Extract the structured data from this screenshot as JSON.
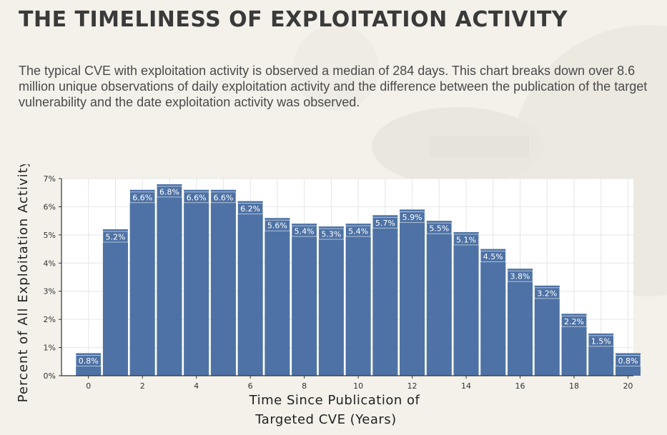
{
  "page": {
    "title": "THE TIMELINESS OF EXPLOITATION ACTIVITY",
    "description": "The typical CVE with exploitation activity is observed a median of 284 days. This chart breaks down over 8.6 million unique observations of daily exploitation activity and the difference between the publication of the target vulnerability and the date exploitation activity was observed."
  },
  "chart_data": {
    "type": "bar",
    "xlabel_lines": [
      "Time Since Publication of",
      "Targeted CVE (Years)"
    ],
    "ylabel": "Percent of All Exploitation Activity",
    "x": [
      0,
      1,
      2,
      3,
      4,
      5,
      6,
      7,
      8,
      9,
      10,
      11,
      12,
      13,
      14,
      15,
      16,
      17,
      18,
      19,
      20
    ],
    "values": [
      0.8,
      5.2,
      6.6,
      6.8,
      6.6,
      6.6,
      6.2,
      5.6,
      5.4,
      5.3,
      5.4,
      5.7,
      5.9,
      5.5,
      5.1,
      4.5,
      3.8,
      3.2,
      2.2,
      1.5,
      0.8
    ],
    "bar_labels": [
      "0.8%",
      "5.2%",
      "6.6%",
      "6.8%",
      "6.6%",
      "6.6%",
      "6.2%",
      "5.6%",
      "5.4%",
      "5.3%",
      "5.4%",
      "5.7%",
      "5.9%",
      "5.5%",
      "5.1%",
      "4.5%",
      "3.8%",
      "3.2%",
      "2.2%",
      "1.5%",
      "0.8%"
    ],
    "x_ticks": [
      0,
      2,
      4,
      6,
      8,
      10,
      12,
      14,
      16,
      18,
      20
    ],
    "y_ticks": [
      "0%",
      "1%",
      "2%",
      "3%",
      "4%",
      "5%",
      "6%",
      "7%"
    ],
    "ylim": [
      0,
      7
    ],
    "xlim": [
      -1,
      20.2
    ],
    "grid": true,
    "bar_color": "#4e72a5",
    "grid_color": "#e6e6e6"
  }
}
